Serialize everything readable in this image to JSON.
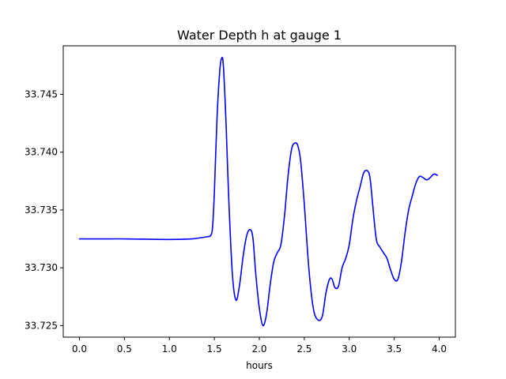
{
  "chart_data": {
    "type": "line",
    "title": "Water Depth h at gauge 1",
    "xlabel": "hours",
    "ylabel": "",
    "xlim": [
      -0.18,
      4.18
    ],
    "ylim": [
      33.724,
      33.7492
    ],
    "x_ticks": [
      0.0,
      0.5,
      1.0,
      1.5,
      2.0,
      2.5,
      3.0,
      3.5,
      4.0
    ],
    "x_tick_labels": [
      "0.0",
      "0.5",
      "1.0",
      "1.5",
      "2.0",
      "2.5",
      "3.0",
      "3.5",
      "4.0"
    ],
    "y_ticks": [
      33.725,
      33.73,
      33.735,
      33.74,
      33.745
    ],
    "y_tick_labels": [
      "33.725",
      "33.730",
      "33.735",
      "33.740",
      "33.745"
    ],
    "grid": false,
    "series": [
      {
        "color": "#0000ff",
        "x": [
          0.0,
          0.25,
          0.5,
          0.75,
          1.0,
          1.25,
          1.35,
          1.43,
          1.46,
          1.48,
          1.5,
          1.53,
          1.56,
          1.58,
          1.6,
          1.63,
          1.66,
          1.7,
          1.74,
          1.78,
          1.82,
          1.86,
          1.9,
          1.93,
          1.96,
          2.0,
          2.04,
          2.08,
          2.12,
          2.16,
          2.2,
          2.24,
          2.28,
          2.32,
          2.36,
          2.4,
          2.43,
          2.46,
          2.5,
          2.55,
          2.6,
          2.65,
          2.7,
          2.74,
          2.78,
          2.81,
          2.84,
          2.88,
          2.92,
          2.96,
          3.0,
          3.04,
          3.08,
          3.12,
          3.16,
          3.2,
          3.23,
          3.26,
          3.3,
          3.34,
          3.38,
          3.42,
          3.46,
          3.5,
          3.54,
          3.58,
          3.62,
          3.66,
          3.7,
          3.74,
          3.78,
          3.82,
          3.86,
          3.9,
          3.94,
          3.98
        ],
        "y": [
          33.7325,
          33.7325,
          33.7325,
          33.73247,
          33.73245,
          33.7325,
          33.7326,
          33.7327,
          33.7328,
          33.7335,
          33.7365,
          33.743,
          33.747,
          33.7481,
          33.7475,
          33.7425,
          33.736,
          33.7295,
          33.7272,
          33.7285,
          33.731,
          33.7328,
          33.7333,
          33.7325,
          33.7295,
          33.7265,
          33.725,
          33.726,
          33.7285,
          33.7305,
          33.7313,
          33.732,
          33.7345,
          33.738,
          33.7403,
          33.7408,
          33.7405,
          33.7392,
          33.7355,
          33.73,
          33.7265,
          33.7255,
          33.7258,
          33.7278,
          33.729,
          33.729,
          33.7283,
          33.7284,
          33.73,
          33.7308,
          33.732,
          33.7342,
          33.7358,
          33.737,
          33.7382,
          33.7384,
          33.7378,
          33.7355,
          33.7325,
          33.7318,
          33.7313,
          33.7308,
          33.7298,
          33.729,
          33.729,
          33.7305,
          33.733,
          33.735,
          33.7362,
          33.7373,
          33.7379,
          33.7378,
          33.7376,
          33.7378,
          33.7381,
          33.738
        ]
      }
    ]
  }
}
